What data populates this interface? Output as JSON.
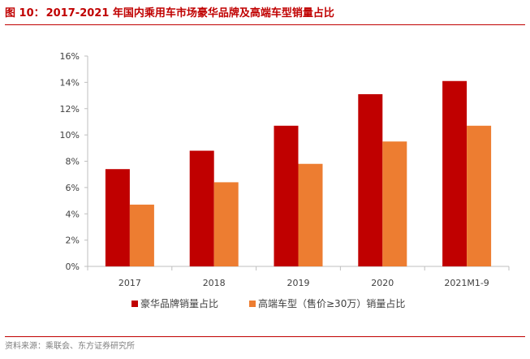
{
  "header": {
    "figure_label": "图 10：",
    "title": "2017-2021 年国内乘用车市场豪华品牌及高端车型销量占比"
  },
  "footer": {
    "source": "资料来源：乘联会、东方证券研究所"
  },
  "chart_data": {
    "type": "bar",
    "title": "",
    "xlabel": "",
    "ylabel": "",
    "categories": [
      "2017",
      "2018",
      "2019",
      "2020",
      "2021M1-9"
    ],
    "ylim": [
      0,
      16
    ],
    "yticks": [
      0,
      2,
      4,
      6,
      8,
      10,
      12,
      14,
      16
    ],
    "ytick_labels": [
      "0%",
      "2%",
      "4%",
      "6%",
      "8%",
      "10%",
      "12%",
      "14%",
      "16%"
    ],
    "unit": "%",
    "grid": false,
    "legend_position": "bottom",
    "series": [
      {
        "name": "豪华品牌销量占比",
        "color": "#c00000",
        "values": [
          7.4,
          8.8,
          10.7,
          13.1,
          14.1
        ]
      },
      {
        "name": "高端车型（售价≥30万）销量占比",
        "color": "#ed7d31",
        "values": [
          4.7,
          6.4,
          7.8,
          9.5,
          10.7
        ]
      }
    ]
  }
}
